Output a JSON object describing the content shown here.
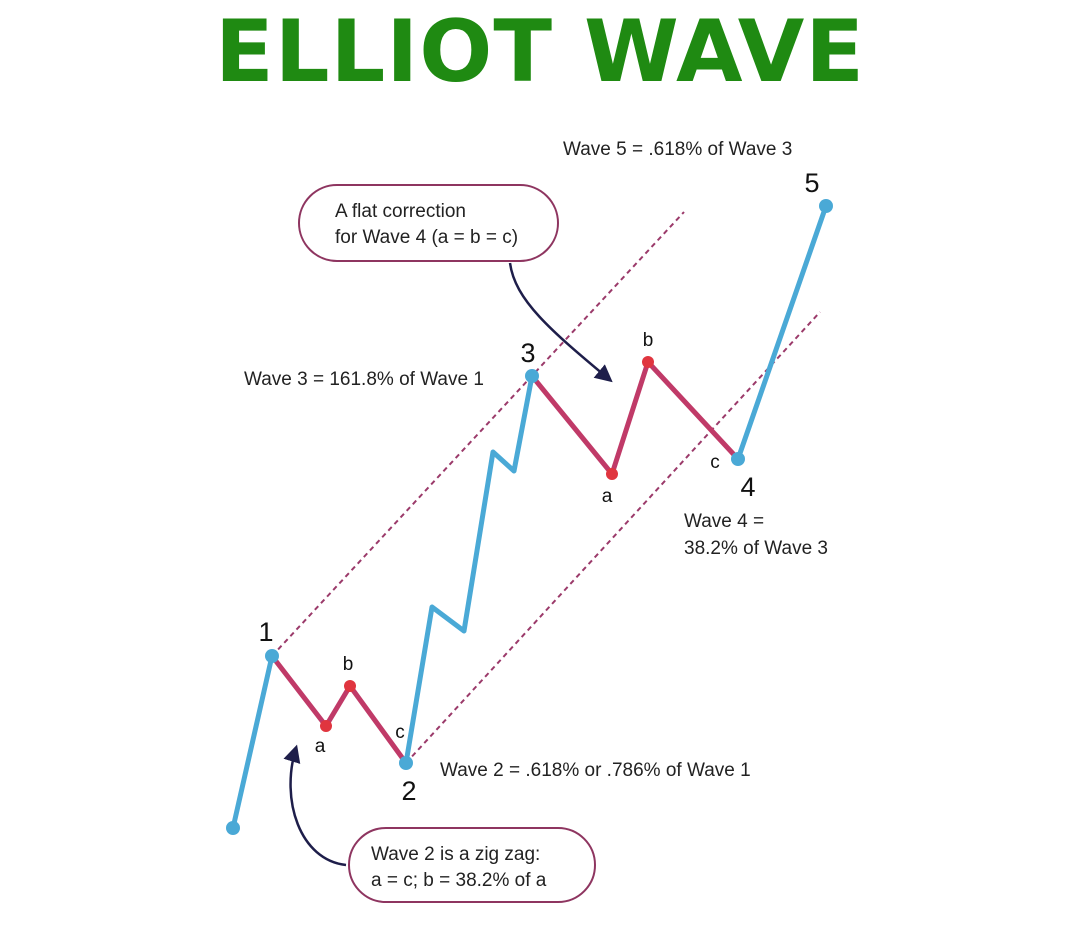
{
  "title": "ELLIOT WAVE",
  "colors": {
    "title": "#1f8a12",
    "impulse": "#4aa9d6",
    "correction": "#c03a68",
    "node_blue": "#4aa9d6",
    "node_red": "#e0353f",
    "channel": "#9b3a6a",
    "arrow": "#1e1e4a",
    "callout_border": "#8e3560"
  },
  "wave_labels": {
    "w1": "1",
    "w2": "2",
    "w3": "3",
    "w4": "4",
    "w5": "5",
    "w2_a": "a",
    "w2_b": "b",
    "w2_c": "c",
    "w4_a": "a",
    "w4_b": "b",
    "w4_c": "c"
  },
  "annotations": {
    "wave5": "Wave 5 = .618% of Wave 3",
    "wave3": "Wave 3 = 161.8% of Wave 1",
    "wave4_line1": "Wave 4 =",
    "wave4_line2": "38.2% of Wave 3",
    "wave2": "Wave 2 = .618% or .786% of Wave 1"
  },
  "callouts": {
    "flat": {
      "line1": "A flat correction",
      "line2": "for Wave 4 (a = b = c)"
    },
    "zigzag": {
      "line1": "Wave 2 is a zig zag:",
      "line2": "a = c; b = 38.2% of a"
    }
  }
}
